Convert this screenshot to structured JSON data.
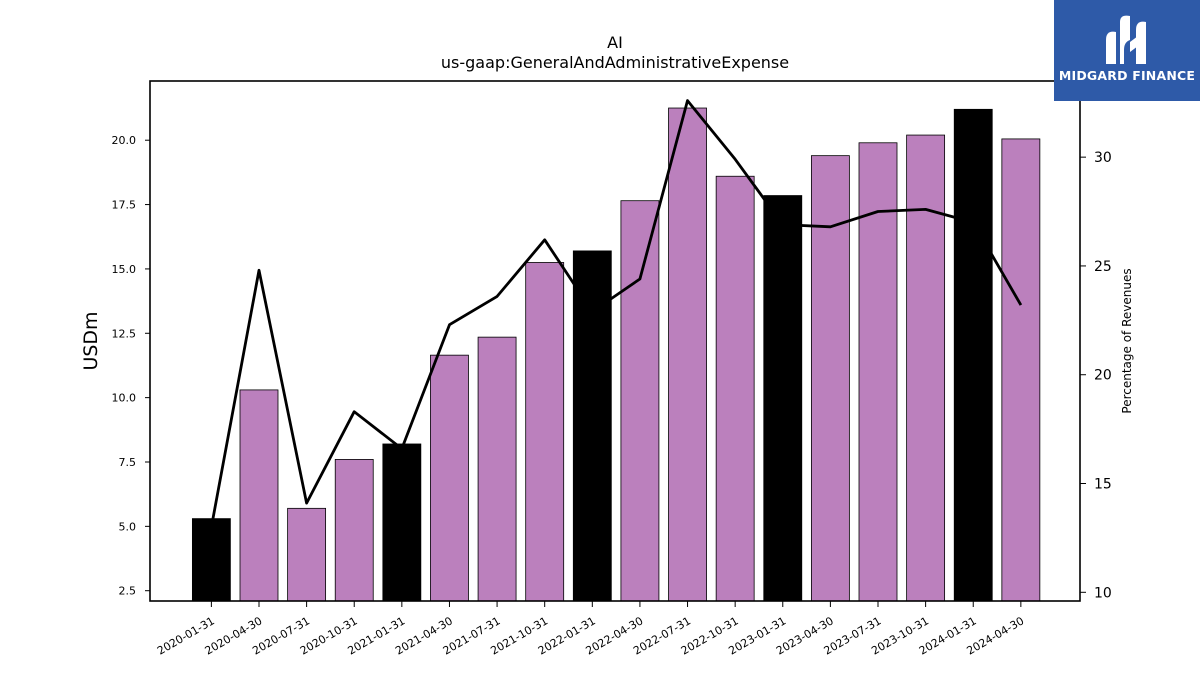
{
  "chart_data": {
    "type": "bar",
    "title": "AI",
    "subtitle": "us-gaap:GeneralAndAdministrativeExpense",
    "ylabel": "USDm",
    "y2label": "Percentage of Revenues",
    "ylim": [
      2.1,
      22.3
    ],
    "y2lim": [
      9.6,
      33.5
    ],
    "yticks": [
      "2.5",
      "5.0",
      "7.5",
      "10.0",
      "12.5",
      "15.0",
      "17.5",
      "20.0"
    ],
    "y2ticks": [
      "10",
      "15",
      "20",
      "25",
      "30"
    ],
    "categories": [
      "2020-01-31",
      "2020-04-30",
      "2020-07-31",
      "2020-10-31",
      "2021-01-31",
      "2021-04-30",
      "2021-07-31",
      "2021-10-31",
      "2022-01-31",
      "2022-04-30",
      "2022-07-31",
      "2022-10-31",
      "2023-01-31",
      "2023-04-30",
      "2023-07-31",
      "2023-10-31",
      "2024-01-31",
      "2024-04-30"
    ],
    "series": [
      {
        "kind": "bar",
        "axis": "left",
        "values": [
          5.3,
          10.3,
          5.7,
          7.6,
          8.2,
          11.65,
          12.35,
          15.25,
          15.7,
          17.65,
          21.25,
          18.6,
          17.85,
          19.4,
          19.9,
          20.2,
          21.2,
          20.05
        ],
        "colors": [
          "#000000",
          "#bb80bd",
          "#bb80bd",
          "#bb80bd",
          "#000000",
          "#bb80bd",
          "#bb80bd",
          "#bb80bd",
          "#000000",
          "#bb80bd",
          "#bb80bd",
          "#bb80bd",
          "#000000",
          "#bb80bd",
          "#bb80bd",
          "#bb80bd",
          "#000000",
          "#bb80bd"
        ]
      },
      {
        "kind": "line",
        "axis": "right",
        "color": "#000000",
        "values": [
          13.0,
          24.8,
          14.1,
          18.3,
          16.6,
          22.3,
          23.6,
          26.2,
          22.9,
          24.4,
          32.6,
          29.9,
          26.9,
          26.8,
          27.5,
          27.6,
          27.0,
          23.2
        ]
      }
    ],
    "grid": false,
    "legend": "none"
  },
  "logo": {
    "text": "MIDGARD FINANCE",
    "background": "#2e5aa8"
  }
}
